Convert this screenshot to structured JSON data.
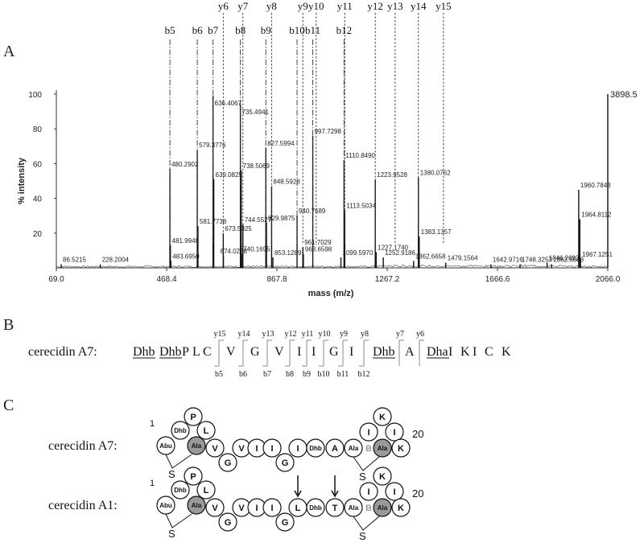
{
  "panels": {
    "a": "A",
    "b": "B",
    "c": "C"
  },
  "chart_data": {
    "type": "line",
    "title": "",
    "xlabel": "mass (m/z)",
    "ylabel": "% intensity",
    "xlim": [
      69.0,
      2066.0
    ],
    "ylim": [
      0,
      100
    ],
    "xtick_labels": [
      "69.0",
      "468.4",
      "867.8",
      "1267.2",
      "1666.6",
      "2066.0"
    ],
    "ytick_labels": [
      "20",
      "40",
      "60",
      "80",
      "100"
    ],
    "max_intensity_label": "3898.5",
    "peaks": [
      {
        "x": 86.5215,
        "y": 2,
        "label": "86.5215"
      },
      {
        "x": 228.2004,
        "y": 2,
        "label": "228.2004"
      },
      {
        "x": 480.2902,
        "y": 57,
        "label": "480.2902"
      },
      {
        "x": 481.9948,
        "y": 13,
        "label": "481.9948"
      },
      {
        "x": 483.695,
        "y": 4,
        "label": "483.6950"
      },
      {
        "x": 579.3776,
        "y": 68,
        "label": "579.3776"
      },
      {
        "x": 581.7738,
        "y": 24,
        "label": "581.7738"
      },
      {
        "x": 636.4067,
        "y": 99,
        "label": "636.4067"
      },
      {
        "x": 639.0825,
        "y": 51,
        "label": "639.0825"
      },
      {
        "x": 673.5025,
        "y": 20,
        "label": "673.5025"
      },
      {
        "x": 674.0238,
        "y": 7,
        "label": "674.0238"
      },
      {
        "x": 735.4941,
        "y": 94,
        "label": "735.4941"
      },
      {
        "x": 738.5069,
        "y": 56,
        "label": "738.5069"
      },
      {
        "x": 740.1695,
        "y": 8,
        "label": "740.1695"
      },
      {
        "x": 744.5527,
        "y": 25,
        "label": "744.5527"
      },
      {
        "x": 827.5994,
        "y": 69,
        "label": "827.5994"
      },
      {
        "x": 829.9875,
        "y": 26,
        "label": "829.9875"
      },
      {
        "x": 848.5928,
        "y": 47,
        "label": "848.5928"
      },
      {
        "x": 853.1289,
        "y": 6,
        "label": "853.1289"
      },
      {
        "x": 940.7689,
        "y": 30,
        "label": "940.7689"
      },
      {
        "x": 961.7029,
        "y": 12,
        "label": "961.7029"
      },
      {
        "x": 963.6598,
        "y": 8,
        "label": "963.6598"
      },
      {
        "x": 997.7298,
        "y": 76,
        "label": "997.7298"
      },
      {
        "x": 1099.597,
        "y": 6,
        "label": "1099.5970"
      },
      {
        "x": 1110.849,
        "y": 62,
        "label": "1110.8490"
      },
      {
        "x": 1113.5034,
        "y": 33,
        "label": "1113.5034"
      },
      {
        "x": 1223.9528,
        "y": 51,
        "label": "1223.9528"
      },
      {
        "x": 1227.174,
        "y": 9,
        "label": "1227.1740"
      },
      {
        "x": 1252.9186,
        "y": 6,
        "label": "1252.9186"
      },
      {
        "x": 1362.6658,
        "y": 4,
        "label": "1362.6658"
      },
      {
        "x": 1380.0762,
        "y": 52,
        "label": "1380.0762"
      },
      {
        "x": 1383.1357,
        "y": 18,
        "label": "1383.1357"
      },
      {
        "x": 1479.1564,
        "y": 3,
        "label": "1479.1564"
      },
      {
        "x": 1642.9716,
        "y": 2,
        "label": "1642.9716"
      },
      {
        "x": 1748.3253,
        "y": 2,
        "label": "1748.3253"
      },
      {
        "x": 1846.2693,
        "y": 3,
        "label": "1846.2693"
      },
      {
        "x": 1862.5588,
        "y": 2,
        "label": "1862.5588"
      },
      {
        "x": 1960.7848,
        "y": 45,
        "label": "1960.7848"
      },
      {
        "x": 1964.8112,
        "y": 28,
        "label": "1964.8112"
      },
      {
        "x": 1967.1251,
        "y": 5,
        "label": "1967.1251"
      },
      {
        "x": 2066.0,
        "y": 100,
        "label": ""
      }
    ],
    "b_ions": [
      {
        "label": "b5",
        "x": 480.2902
      },
      {
        "label": "b6",
        "x": 579.3776
      },
      {
        "label": "b7",
        "x": 636.4067
      },
      {
        "label": "b8",
        "x": 735.4941
      },
      {
        "label": "b9",
        "x": 827.5994
      },
      {
        "label": "b10",
        "x": 940.7689
      },
      {
        "label": "b11",
        "x": 997.7298
      },
      {
        "label": "b12",
        "x": 1110.849
      }
    ],
    "y_ions": [
      {
        "label": "y6",
        "x": 673.5025
      },
      {
        "label": "y7",
        "x": 744.5527
      },
      {
        "label": "y8",
        "x": 848.5928
      },
      {
        "label": "y9",
        "x": 961.7029
      },
      {
        "label": "y10",
        "x": 1010.0
      },
      {
        "label": "y11",
        "x": 1113.5034
      },
      {
        "label": "y12",
        "x": 1223.9528
      },
      {
        "label": "y13",
        "x": 1296.0
      },
      {
        "label": "y14",
        "x": 1380.0762
      },
      {
        "label": "y15",
        "x": 1471.0
      }
    ]
  },
  "sequence": {
    "name": "cerecidin A7:",
    "residues": [
      {
        "text": "Dhb",
        "u": true
      },
      {
        "text": "Dhb",
        "u": true
      },
      {
        "text": "P",
        "u": false
      },
      {
        "text": "L",
        "u": false
      },
      {
        "text": "C",
        "u": false
      },
      {
        "text": "V",
        "u": false
      },
      {
        "text": "G",
        "u": false
      },
      {
        "text": "V",
        "u": false
      },
      {
        "text": "I",
        "u": false
      },
      {
        "text": "I",
        "u": false
      },
      {
        "text": "G",
        "u": false
      },
      {
        "text": "I",
        "u": false
      },
      {
        "text": "Dhb",
        "u": true
      },
      {
        "text": "A",
        "u": false
      },
      {
        "text": "Dha",
        "u": true
      },
      {
        "text": "I",
        "u": false
      },
      {
        "text": "K",
        "u": false
      },
      {
        "text": "I",
        "u": false
      },
      {
        "text": "C",
        "u": false
      },
      {
        "text": "K",
        "u": false
      }
    ],
    "top_labels": [
      "y15",
      "y14",
      "y13",
      "y12",
      "y11",
      "y10",
      "y9",
      "y8",
      "y7",
      "y6"
    ],
    "bottom_labels": [
      "b5",
      "b6",
      "b7",
      "b8",
      "b9",
      "b10",
      "b11",
      "b12"
    ]
  },
  "structures": [
    {
      "name": "cerecidin A7:",
      "start_num": "1",
      "end_num": "20",
      "ring_a": "A",
      "ring_b": "B",
      "bridge_a": "S",
      "bridge_b": "S",
      "residues": [
        "Abu",
        "Dhb",
        "P",
        "L",
        "Ala",
        "V",
        "G",
        "V",
        "I",
        "I",
        "G",
        "I",
        "Dhb",
        "A",
        "Ala",
        "I",
        "K",
        "I",
        "Ala",
        "K"
      ],
      "arrows": []
    },
    {
      "name": "cerecidin A1:",
      "start_num": "1",
      "end_num": "20",
      "ring_a": "A",
      "ring_b": "B",
      "bridge_a": "S",
      "bridge_b": "S",
      "residues": [
        "Abu",
        "Dhb",
        "P",
        "L",
        "Ala",
        "V",
        "G",
        "V",
        "I",
        "I",
        "G",
        "L",
        "Dhb",
        "T",
        "Ala",
        "I",
        "K",
        "I",
        "Ala",
        "K"
      ],
      "arrows": [
        11,
        13
      ]
    }
  ]
}
